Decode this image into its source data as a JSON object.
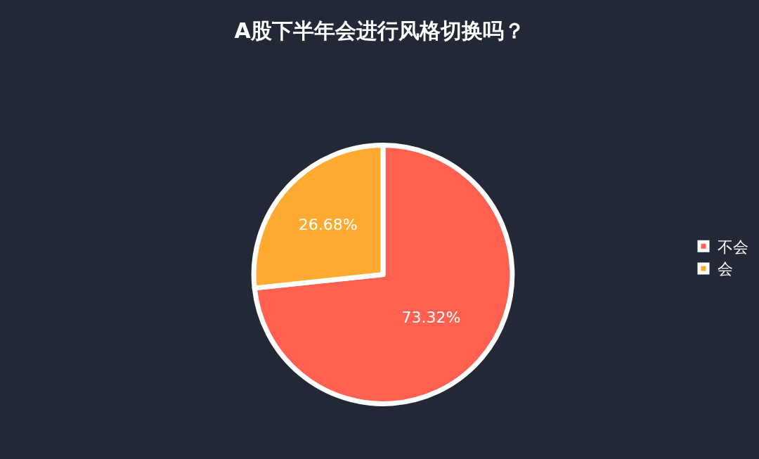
{
  "chart_data": {
    "type": "pie",
    "title": "A股下半年会进行风格切换吗？",
    "categories": [
      "不会",
      "会"
    ],
    "values": [
      73.32,
      26.68
    ],
    "colors": [
      "#ff604f",
      "#ffab32"
    ],
    "value_labels": [
      "73.32%",
      "26.68%"
    ],
    "legend": "right"
  }
}
